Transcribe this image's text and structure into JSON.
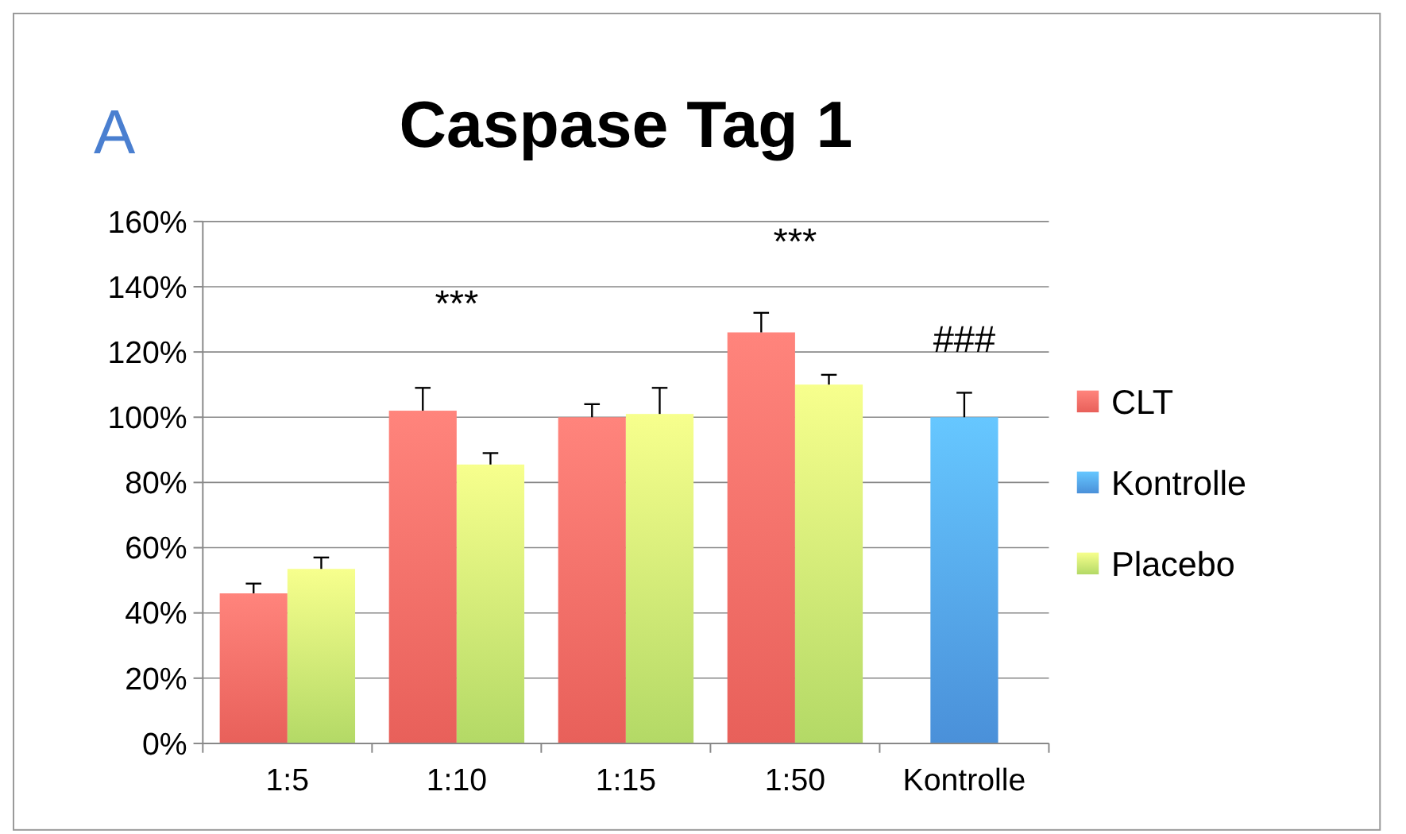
{
  "chart_data": {
    "type": "bar",
    "title": "Caspase Tag 1",
    "categories": [
      "1:5",
      "1:10",
      "1:15",
      "1:50",
      "Kontrolle"
    ],
    "series": [
      {
        "name": "CLT",
        "color": "#e8605a",
        "values": [
          46,
          102,
          100,
          126,
          null
        ],
        "errors": [
          [
            46,
            49
          ],
          [
            102,
            109
          ],
          [
            100,
            104
          ],
          [
            126,
            132
          ],
          null
        ]
      },
      {
        "name": "Kontrolle",
        "color": "#4a90d9",
        "values": [
          null,
          null,
          null,
          null,
          100
        ],
        "errors": [
          null,
          null,
          null,
          null,
          [
            100,
            107.5
          ]
        ]
      },
      {
        "name": "Placebo",
        "color": "#b3d966",
        "values": [
          53.5,
          85.5,
          101,
          110,
          null
        ],
        "errors": [
          [
            53.5,
            57
          ],
          [
            85.5,
            89
          ],
          [
            101,
            109
          ],
          [
            110,
            113
          ],
          null
        ]
      }
    ],
    "ylim": [
      0,
      160
    ],
    "yticks": [
      {
        "value": 0,
        "label": "0%"
      },
      {
        "value": 20,
        "label": "20%"
      },
      {
        "value": 40,
        "label": "40%"
      },
      {
        "value": 60,
        "label": "60%"
      },
      {
        "value": 80,
        "label": "80%"
      },
      {
        "value": 100,
        "label": "100%"
      },
      {
        "value": 120,
        "label": "120%"
      },
      {
        "value": 140,
        "label": "140%"
      },
      {
        "value": 160,
        "label": "160%"
      }
    ],
    "grid": "y",
    "legend": "right",
    "annotations": [
      "A",
      "***",
      "***",
      "###"
    ]
  }
}
